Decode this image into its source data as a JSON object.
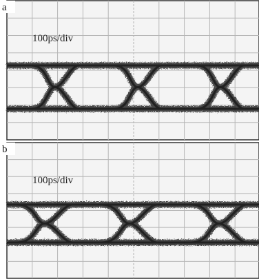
{
  "panels": [
    {
      "label": "a",
      "scale": "100ps/div"
    },
    {
      "label": "b",
      "scale": "100ps/div"
    }
  ]
}
